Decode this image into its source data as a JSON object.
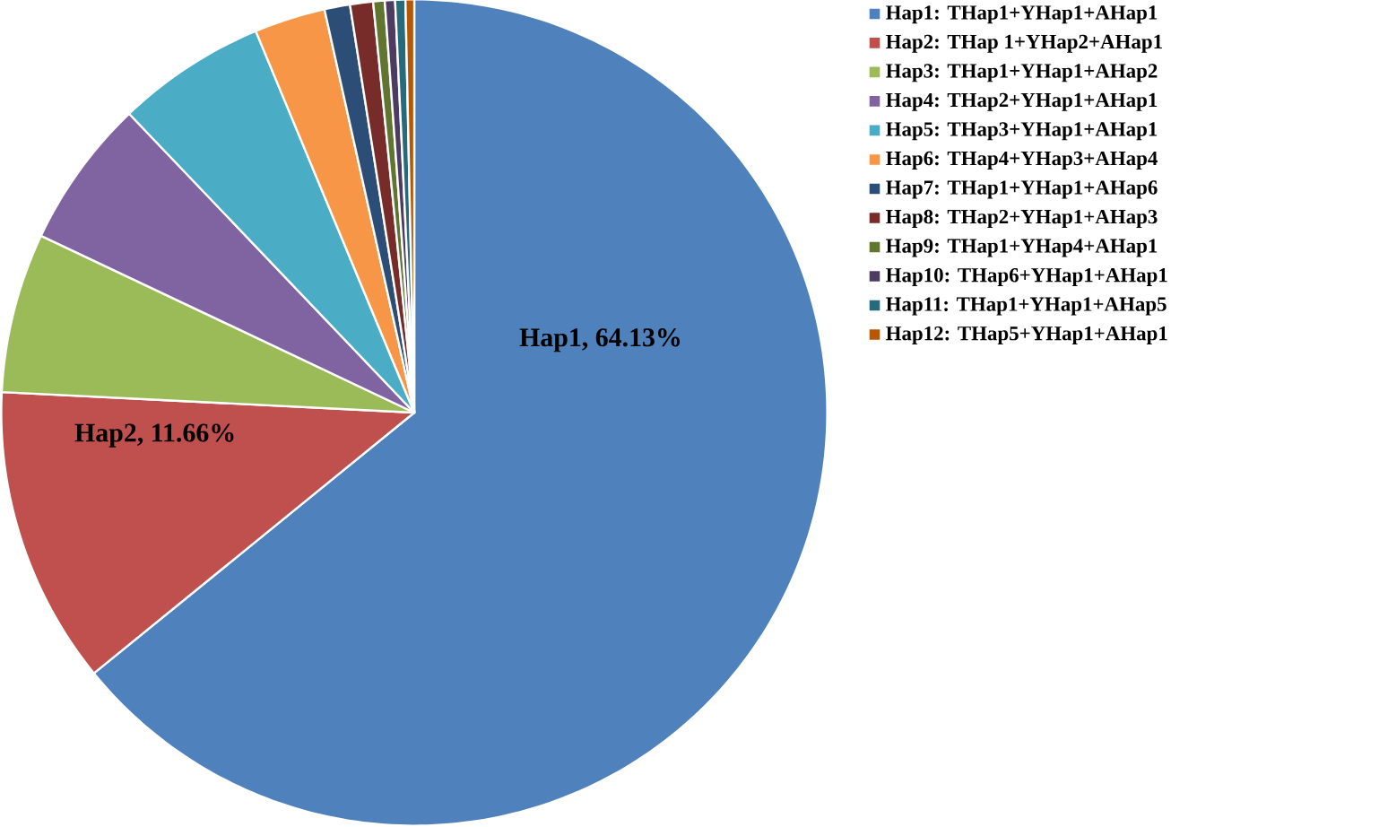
{
  "chart_data": {
    "type": "pie",
    "categories": [
      "Hap1: THap1+YHap1+AHap1",
      "Hap2: THap 1+YHap2+AHap1",
      "Hap3: THap1+YHap1+AHap2",
      "Hap4: THap2+YHap1+AHap1",
      "Hap5: THap3+YHap1+AHap1",
      "Hap6: THap4+YHap3+AHap4",
      "Hap7: THap1+YHap1+AHap6",
      "Hap8: THap2+YHap1+AHap3",
      "Hap9: THap1+YHap4+AHap1",
      "Hap10: THap6+YHap1+AHap1",
      "Hap11: THap1+YHap1+AHap5",
      "Hap12: THap5+YHap1+AHap1"
    ],
    "values": [
      64.13,
      11.66,
      6.25,
      5.83,
      5.86,
      2.78,
      1.0,
      0.9,
      0.45,
      0.4,
      0.4,
      0.34
    ],
    "colors": [
      "#4f81bd",
      "#c0504d",
      "#9bbb59",
      "#8064a2",
      "#4bacc6",
      "#f79646",
      "#2c4d75",
      "#772c2a",
      "#5f7530",
      "#4d3b62",
      "#276a7c",
      "#b65708"
    ],
    "value_labels": [
      "Hap1, 64.13%",
      "Hap2, 11.66%",
      null,
      null,
      null,
      null,
      null,
      null,
      null,
      null,
      null,
      null
    ],
    "legend": "right"
  }
}
